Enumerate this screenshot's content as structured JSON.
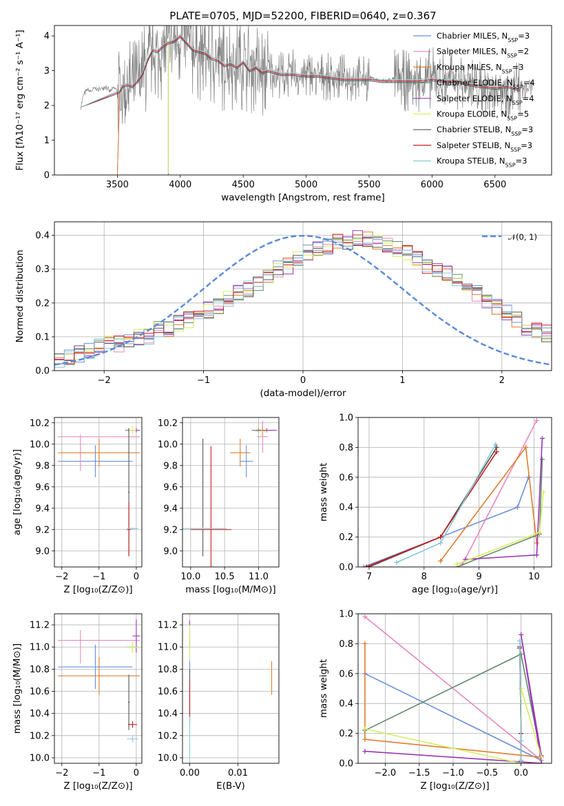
{
  "figure": {
    "title": "PLATE=0705, MJD=52200, FIBERID=0640, z=0.367"
  },
  "models": [
    {
      "key": "chabrier_miles",
      "name": "Chabrier MILES",
      "nssp": "3",
      "color": "#6a8fdb"
    },
    {
      "key": "salpeter_miles",
      "name": "Salpeter MILES",
      "nssp": "2",
      "color": "#e887bd"
    },
    {
      "key": "kroupa_miles",
      "name": "Kroupa MILES",
      "nssp": "3",
      "color": "#e07b2e"
    },
    {
      "key": "chabrier_elodie",
      "name": "Chabrier ELODIE",
      "nssp": "4",
      "color": "#5f8a6a"
    },
    {
      "key": "salpeter_elodie",
      "name": "Salpeter ELODIE",
      "nssp": "4",
      "color": "#9a35b5"
    },
    {
      "key": "kroupa_elodie",
      "name": "Kroupa ELODIE",
      "nssp": "5",
      "color": "#d6ee5a"
    },
    {
      "key": "chabrier_stelib",
      "name": "Chabrier STELIB",
      "nssp": "3",
      "color": "#555555"
    },
    {
      "key": "salpeter_stelib",
      "name": "Salpeter STELIB",
      "nssp": "3",
      "color": "#c81a1a"
    },
    {
      "key": "kroupa_stelib",
      "name": "Kroupa STELIB",
      "nssp": "3",
      "color": "#86c8d8"
    }
  ],
  "chart_data": [
    {
      "id": "spectrum",
      "type": "line",
      "xlabel": "wavelength [Angstrom, rest frame]",
      "ylabel": "Flux [fλ10⁻¹⁷ erg cm⁻² s⁻¹ A⁻¹]",
      "xlim": [
        3000,
        6950
      ],
      "ylim": [
        0,
        4.3
      ],
      "xticks": [
        3500,
        4000,
        4500,
        5000,
        5500,
        6000,
        6500
      ],
      "yticks": [
        0,
        1,
        2,
        3,
        4
      ],
      "data_series": {
        "name": "data",
        "color": "#808080",
        "x": [
          3210,
          3230,
          3260,
          3290,
          3320,
          3350,
          3380,
          3410,
          3440,
          3470,
          3500,
          3540,
          3580,
          3620,
          3660,
          3700,
          3740,
          3780,
          3820,
          3860,
          3900,
          3950,
          4000,
          4050,
          4100,
          4150,
          4200,
          4250,
          4300,
          4350,
          4400,
          4450,
          4500,
          4550,
          4600,
          4650,
          4700,
          4750,
          4800,
          4850,
          4900,
          4950,
          5000,
          5100,
          5200,
          5300,
          5400,
          5500,
          5600,
          5700,
          5800,
          5900,
          6000,
          6100,
          6200,
          6300,
          6400,
          6500,
          6600,
          6700,
          6800
        ],
        "y": [
          1.95,
          2.3,
          2.45,
          2.4,
          2.5,
          2.45,
          2.5,
          2.55,
          2.4,
          2.5,
          2.45,
          2.3,
          2.6,
          2.5,
          2.7,
          2.9,
          3.2,
          3.5,
          3.4,
          3.6,
          3.7,
          3.8,
          3.9,
          3.8,
          3.6,
          3.5,
          3.5,
          3.3,
          3.3,
          3.1,
          3.2,
          3.1,
          3.3,
          3.0,
          3.2,
          2.9,
          3.0,
          2.9,
          2.9,
          2.85,
          2.95,
          2.8,
          2.9,
          2.85,
          2.8,
          2.8,
          2.75,
          2.8,
          2.7,
          2.75,
          2.7,
          2.7,
          2.8,
          2.7,
          2.75,
          2.6,
          2.5,
          2.55,
          2.5,
          2.45,
          2.5
        ]
      },
      "model_x": [
        3500,
        3520,
        3540,
        3580,
        3620,
        3660,
        3700,
        3740,
        3780,
        3820,
        3860,
        3900,
        3950,
        4000,
        4050,
        4100,
        4150,
        4200,
        4250,
        4300,
        4350,
        4400,
        4450,
        4500,
        4550,
        4600,
        4650,
        4700,
        4800,
        4900,
        5000,
        5100,
        5200,
        5300,
        5400,
        5500,
        5600,
        5700,
        5800,
        5900,
        6000,
        6100,
        6200,
        6300,
        6400,
        6500,
        6600,
        6700
      ],
      "model_y": [
        0.0,
        2.4,
        2.55,
        2.6,
        2.55,
        2.7,
        2.9,
        3.3,
        3.6,
        3.55,
        3.7,
        3.8,
        3.85,
        4.0,
        3.8,
        3.6,
        3.55,
        3.5,
        3.35,
        3.3,
        3.15,
        3.2,
        3.1,
        3.25,
        3.0,
        3.1,
        2.95,
        3.0,
        2.9,
        2.9,
        2.85,
        2.85,
        2.8,
        2.75,
        2.75,
        2.75,
        2.7,
        2.7,
        2.7,
        2.7,
        2.75,
        2.7,
        2.7,
        2.6,
        2.55,
        2.5,
        2.55,
        2.45
      ],
      "legend": "top-right"
    },
    {
      "id": "residuals",
      "type": "histogram",
      "xlabel": "(data-model)/error",
      "ylabel": "Normed distribution",
      "xlim": [
        -2.5,
        2.5
      ],
      "ylim": [
        0,
        0.44
      ],
      "xticks": [
        -2,
        -1,
        0,
        1,
        2
      ],
      "yticks": [
        0.0,
        0.1,
        0.2,
        0.3,
        0.4
      ],
      "bin_width": 0.1,
      "bin_start": -2.5,
      "reference": {
        "name": "𝒩(0, 1)",
        "mean": 0,
        "sigma": 1,
        "color": "#5b8bd9",
        "style": "dashed"
      },
      "base_values": [
        0.03,
        0.04,
        0.05,
        0.06,
        0.07,
        0.08,
        0.08,
        0.09,
        0.1,
        0.1,
        0.12,
        0.12,
        0.14,
        0.15,
        0.17,
        0.18,
        0.19,
        0.21,
        0.23,
        0.24,
        0.26,
        0.28,
        0.3,
        0.31,
        0.33,
        0.35,
        0.36,
        0.37,
        0.38,
        0.38,
        0.39,
        0.39,
        0.38,
        0.37,
        0.36,
        0.35,
        0.33,
        0.31,
        0.3,
        0.29,
        0.27,
        0.25,
        0.23,
        0.21,
        0.19,
        0.17,
        0.15,
        0.13,
        0.12,
        0.11
      ]
    },
    {
      "id": "age_vs_Z",
      "type": "scatter",
      "xlabel": "Z [log₁₀(Z/Z⊙)]",
      "ylabel": "age  [log₁₀(age/yr)]",
      "xlim": [
        -2.2,
        0.15
      ],
      "ylim": [
        8.85,
        10.25
      ],
      "xticks": [
        -2,
        -1,
        0
      ],
      "yticks": [
        9.0,
        9.2,
        9.4,
        9.6,
        9.8,
        10.0,
        10.2
      ],
      "points": [
        {
          "model": "chabrier_miles",
          "x": -1.1,
          "xerr": 1.0,
          "y": 9.84,
          "yerr": 0.15
        },
        {
          "model": "salpeter_miles",
          "x": -1.0,
          "xerr": 1.1,
          "y": 10.07,
          "yerr": 0.0
        },
        {
          "model": "salpeter_miles",
          "x": -1.5,
          "xerr": 0.0,
          "y": 9.92,
          "yerr": 0.17
        },
        {
          "model": "kroupa_miles",
          "x": -1.0,
          "xerr": 1.1,
          "y": 9.92,
          "yerr": 0.13
        },
        {
          "model": "chabrier_elodie",
          "x": -0.2,
          "xerr": 0.1,
          "y": 10.13,
          "yerr": 0.02
        },
        {
          "model": "salpeter_elodie",
          "x": 0.0,
          "xerr": 0.1,
          "y": 10.13,
          "yerr": 0.02
        },
        {
          "model": "kroupa_elodie",
          "x": -0.1,
          "xerr": 0.1,
          "y": 10.13,
          "yerr": 0.04
        },
        {
          "model": "chabrier_stelib",
          "x": -0.2,
          "xerr": 0.02,
          "y": 9.55,
          "yerr": 0.6
        },
        {
          "model": "salpeter_stelib",
          "x": -0.2,
          "xerr": 0.05,
          "y": 9.2,
          "yerr": 0.25
        },
        {
          "model": "kroupa_stelib",
          "x": -0.1,
          "xerr": 0.15,
          "y": 9.21,
          "yerr": 0.01
        }
      ]
    },
    {
      "id": "age_vs_mass",
      "type": "scatter",
      "xlabel": "mass [log₁₀(M/M⊙)]",
      "ylabel": "",
      "xlim": [
        9.88,
        11.3
      ],
      "ylim": [
        8.85,
        10.25
      ],
      "xticks": [
        10.0,
        10.5,
        11.0
      ],
      "yticks": [
        9.0,
        9.2,
        9.4,
        9.6,
        9.8,
        10.0,
        10.2
      ],
      "points": [
        {
          "model": "chabrier_miles",
          "x": 10.82,
          "xerr": 0.1,
          "y": 9.84,
          "yerr": 0.15
        },
        {
          "model": "salpeter_miles",
          "x": 11.06,
          "xerr": 0.08,
          "y": 10.07,
          "yerr": 0.15
        },
        {
          "model": "kroupa_miles",
          "x": 10.73,
          "xerr": 0.15,
          "y": 9.92,
          "yerr": 0.13
        },
        {
          "model": "chabrier_elodie",
          "x": 11.0,
          "xerr": 0.1,
          "y": 10.13,
          "yerr": 0.02
        },
        {
          "model": "salpeter_elodie",
          "x": 11.12,
          "xerr": 0.15,
          "y": 10.13,
          "yerr": 0.02
        },
        {
          "model": "kroupa_elodie",
          "x": 11.05,
          "xerr": 0.1,
          "y": 10.12,
          "yerr": 0.05
        },
        {
          "model": "chabrier_stelib",
          "x": 10.18,
          "xerr": 0.0,
          "y": 9.5,
          "yerr": 0.55
        },
        {
          "model": "salpeter_stelib",
          "x": 10.3,
          "xerr": 0.3,
          "y": 9.2,
          "yerr": 0.78
        },
        {
          "model": "kroupa_stelib",
          "x": 10.18,
          "xerr": 0.35,
          "y": 9.21,
          "yerr": 0.01
        }
      ]
    },
    {
      "id": "mass_weight_vs_age",
      "type": "line",
      "xlabel": "age  [log₁₀(age/yr)]",
      "ylabel": "mass weight",
      "xlim": [
        6.8,
        10.32
      ],
      "ylim": [
        0,
        1
      ],
      "xticks": [
        7,
        8,
        9,
        10
      ],
      "yticks": [
        0.0,
        0.2,
        0.4,
        0.6,
        0.8,
        1.0
      ],
      "series": [
        {
          "model": "chabrier_miles",
          "x": [
            6.9,
            9.7,
            9.9
          ],
          "y": [
            0.0,
            0.4,
            0.6
          ]
        },
        {
          "model": "salpeter_miles",
          "x": [
            8.7,
            10.05
          ],
          "y": [
            0.02,
            0.98
          ]
        },
        {
          "model": "kroupa_miles",
          "x": [
            8.3,
            9.85,
            10.05
          ],
          "y": [
            0.04,
            0.8,
            0.16
          ]
        },
        {
          "model": "chabrier_elodie",
          "x": [
            8.6,
            10.1,
            10.15
          ],
          "y": [
            0.0,
            0.22,
            0.72
          ]
        },
        {
          "model": "salpeter_elodie",
          "x": [
            8.75,
            10.05,
            10.15
          ],
          "y": [
            0.05,
            0.08,
            0.86
          ]
        },
        {
          "model": "kroupa_elodie",
          "x": [
            8.6,
            10.1,
            10.17
          ],
          "y": [
            0.02,
            0.23,
            0.5
          ]
        },
        {
          "model": "chabrier_stelib",
          "x": [
            7.0,
            8.3,
            9.32
          ],
          "y": [
            0.0,
            0.2,
            0.8
          ]
        },
        {
          "model": "salpeter_stelib",
          "x": [
            6.95,
            8.3,
            9.32
          ],
          "y": [
            0.0,
            0.2,
            0.77
          ]
        },
        {
          "model": "kroupa_stelib",
          "x": [
            7.5,
            8.3,
            9.3
          ],
          "y": [
            0.03,
            0.16,
            0.82
          ]
        }
      ]
    },
    {
      "id": "mass_vs_Z",
      "type": "scatter",
      "xlabel": "Z [log₁₀(Z/Z⊙)]",
      "ylabel": "mass [log₁₀(M/M⊙)]",
      "xlim": [
        -2.2,
        0.15
      ],
      "ylim": [
        9.95,
        11.3
      ],
      "xticks": [
        -2,
        -1,
        0
      ],
      "yticks": [
        10.0,
        10.2,
        10.4,
        10.6,
        10.8,
        11.0,
        11.2
      ],
      "points": [
        {
          "model": "chabrier_miles",
          "x": -1.1,
          "xerr": 1.0,
          "y": 10.82,
          "yerr": 0.2
        },
        {
          "model": "salpeter_miles",
          "x": -1.0,
          "xerr": 1.1,
          "y": 11.06,
          "yerr": 0.0
        },
        {
          "model": "salpeter_miles",
          "x": -1.5,
          "xerr": 0.0,
          "y": 11.0,
          "yerr": 0.15
        },
        {
          "model": "kroupa_miles",
          "x": -1.0,
          "xerr": 1.1,
          "y": 10.74,
          "yerr": 0.17
        },
        {
          "model": "chabrier_elodie",
          "x": -0.1,
          "xerr": 0.15,
          "y": 11.0,
          "yerr": 0.05
        },
        {
          "model": "salpeter_elodie",
          "x": 0.0,
          "xerr": 0.1,
          "y": 11.1,
          "yerr": 0.15
        },
        {
          "model": "kroupa_elodie",
          "x": -0.1,
          "xerr": 0.15,
          "y": 11.0,
          "yerr": 0.05
        },
        {
          "model": "chabrier_stelib",
          "x": -0.2,
          "xerr": 0.02,
          "y": 10.5,
          "yerr": 0.25
        },
        {
          "model": "salpeter_stelib",
          "x": -0.1,
          "xerr": 0.12,
          "y": 10.3,
          "yerr": 0.03
        },
        {
          "model": "kroupa_stelib",
          "x": -0.1,
          "xerr": 0.15,
          "y": 10.17,
          "yerr": 0.03
        }
      ]
    },
    {
      "id": "mass_vs_ebv",
      "type": "scatter",
      "xlabel": "E(B-V)",
      "ylabel": "",
      "xlim": [
        -0.0015,
        0.0185
      ],
      "ylim": [
        9.95,
        11.3
      ],
      "xticks": [
        0.0,
        0.01
      ],
      "yticks": [
        10.0,
        10.2,
        10.4,
        10.6,
        10.8,
        11.0,
        11.2
      ],
      "points": [
        {
          "model": "chabrier_miles",
          "x": 0.0,
          "xerr": 0,
          "y": 10.82,
          "yerr": 0.05
        },
        {
          "model": "salpeter_miles",
          "x": 0.0,
          "xerr": 0,
          "y": 11.06,
          "yerr": 0.05
        },
        {
          "model": "kroupa_miles",
          "x": 0.017,
          "xerr": 0,
          "y": 10.72,
          "yerr": 0.15
        },
        {
          "model": "chabrier_elodie",
          "x": 0.0,
          "xerr": 0,
          "y": 11.0,
          "yerr": 0.05
        },
        {
          "model": "salpeter_elodie",
          "x": 0.0,
          "xerr": 0,
          "y": 11.12,
          "yerr": 0.12
        },
        {
          "model": "kroupa_elodie",
          "x": 0.0,
          "xerr": 0,
          "y": 11.05,
          "yerr": 0.15
        },
        {
          "model": "chabrier_stelib",
          "x": 0.0,
          "xerr": 0,
          "y": 10.6,
          "yerr": 0.2
        },
        {
          "model": "salpeter_stelib",
          "x": 0.0,
          "xerr": 0,
          "y": 10.5,
          "yerr": 0.2
        },
        {
          "model": "kroupa_stelib",
          "x": 0.0,
          "xerr": 0,
          "y": 10.17,
          "yerr": 0.2
        }
      ]
    },
    {
      "id": "mass_weight_vs_Z",
      "type": "line",
      "xlabel": "Z [log₁₀(Z/Z⊙)]",
      "ylabel": "mass weight",
      "xlim": [
        -2.4,
        0.45
      ],
      "ylim": [
        0,
        1
      ],
      "xticks": [
        -2.0,
        -1.5,
        -1.0,
        -0.5,
        0.0
      ],
      "yticks": [
        0.0,
        0.2,
        0.4,
        0.6,
        0.8,
        1.0
      ],
      "xticklabels": [
        "−2.0",
        "−1.5",
        "−1.0",
        "−0.5",
        "0.0"
      ],
      "series": [
        {
          "model": "chabrier_miles",
          "x": [
            -2.3,
            0.3,
            0.3
          ],
          "y": [
            0.6,
            0.02,
            0.04
          ]
        },
        {
          "model": "salpeter_miles",
          "x": [
            -2.3,
            0.3
          ],
          "y": [
            0.98,
            0.02
          ]
        },
        {
          "model": "kroupa_miles",
          "x": [
            -2.3,
            -2.3,
            0.3
          ],
          "y": [
            0.8,
            0.16,
            0.04
          ]
        },
        {
          "model": "chabrier_elodie",
          "x": [
            -2.3,
            0.0,
            0.3
          ],
          "y": [
            0.22,
            0.73,
            0.04
          ]
        },
        {
          "model": "salpeter_elodie",
          "x": [
            -2.3,
            0.3,
            0.0,
            0.3
          ],
          "y": [
            0.08,
            0.0,
            0.86,
            0.05
          ]
        },
        {
          "model": "kroupa_elodie",
          "x": [
            -2.3,
            0.0,
            0.0,
            0.3
          ],
          "y": [
            0.23,
            0.0,
            0.5,
            0.04
          ]
        },
        {
          "model": "chabrier_stelib",
          "x": [
            -0.02,
            0.0,
            0.0
          ],
          "y": [
            0.78,
            0.2,
            0.02
          ]
        },
        {
          "model": "salpeter_stelib",
          "x": [
            -0.02,
            0.0,
            0.0
          ],
          "y": [
            0.77,
            0.2,
            0.02
          ]
        },
        {
          "model": "kroupa_stelib",
          "x": [
            -0.02,
            0.0,
            0.0
          ],
          "y": [
            0.82,
            0.15,
            0.02
          ]
        }
      ]
    }
  ]
}
